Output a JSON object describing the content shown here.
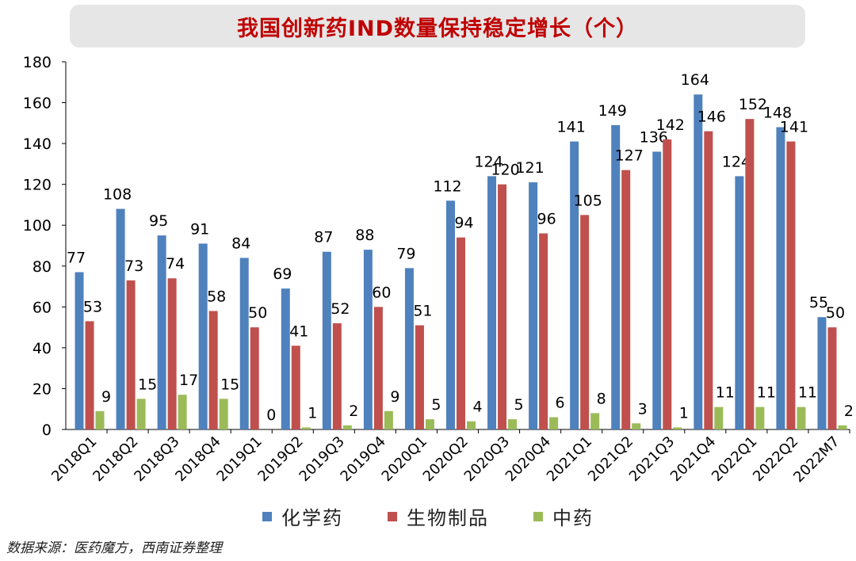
{
  "chart_data": {
    "type": "bar",
    "title": "我国创新药IND数量保持稳定增长（个）",
    "categories": [
      "2018Q1",
      "2018Q2",
      "2018Q3",
      "2018Q4",
      "2019Q1",
      "2019Q2",
      "2019Q3",
      "2019Q4",
      "2020Q1",
      "2020Q2",
      "2020Q3",
      "2020Q4",
      "2021Q1",
      "2021Q2",
      "2021Q3",
      "2021Q4",
      "2022Q1",
      "2022Q2",
      "2022M7"
    ],
    "series": [
      {
        "name": "化学药",
        "color": "#4f81bd",
        "values": [
          77,
          108,
          95,
          91,
          84,
          69,
          87,
          88,
          79,
          112,
          124,
          121,
          141,
          149,
          136,
          164,
          124,
          148,
          55
        ]
      },
      {
        "name": "生物制品",
        "color": "#c0504d",
        "values": [
          53,
          73,
          74,
          58,
          50,
          41,
          52,
          60,
          51,
          94,
          120,
          96,
          105,
          127,
          142,
          146,
          152,
          141,
          50
        ]
      },
      {
        "name": "中药",
        "color": "#9bbb59",
        "values": [
          9,
          15,
          17,
          15,
          0,
          1,
          2,
          9,
          5,
          4,
          5,
          6,
          8,
          3,
          1,
          11,
          11,
          11,
          2
        ]
      }
    ],
    "ylim": [
      0,
      180
    ],
    "yticks": [
      0,
      20,
      40,
      60,
      80,
      100,
      120,
      140,
      160,
      180
    ],
    "xlabel": "",
    "ylabel": "",
    "legend_position": "bottom"
  },
  "source_note": "数据来源：医药魔方，西南证券整理"
}
